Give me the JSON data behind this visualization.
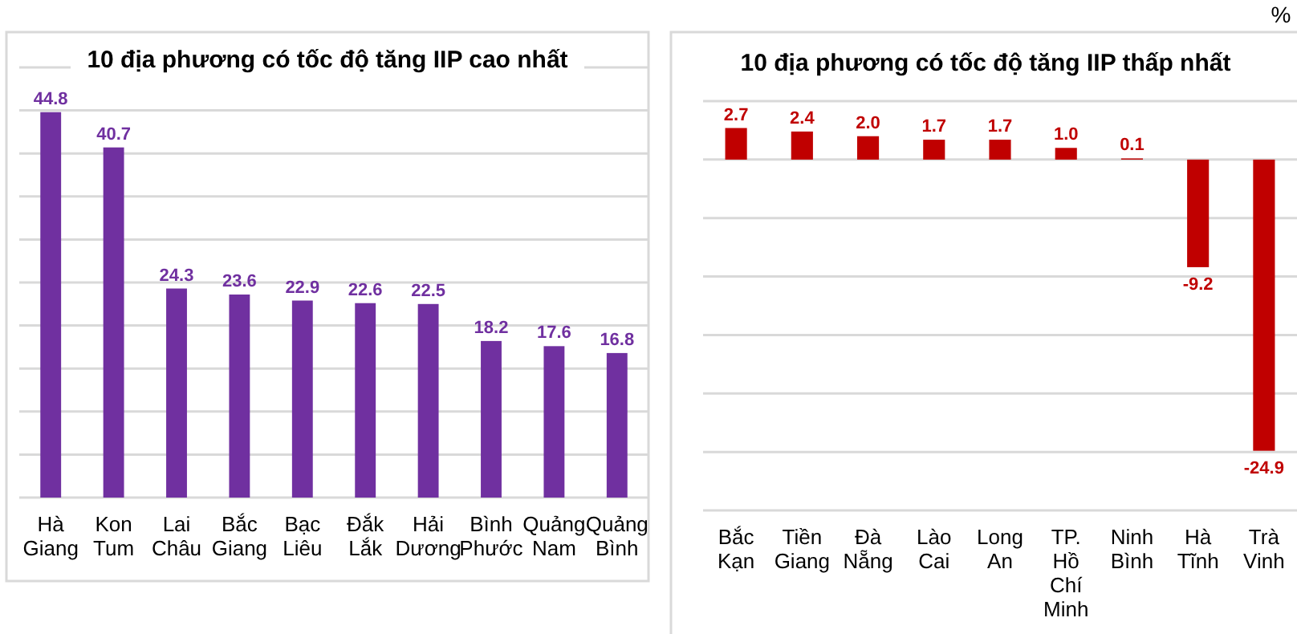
{
  "chart_data": [
    {
      "type": "bar",
      "title": "10 địa phương có tốc độ tăng IIP cao nhất",
      "categories": [
        "Hà Giang",
        "Kon Tum",
        "Lai Châu",
        "Bắc Giang",
        "Bạc Liêu",
        "Đắk Lắk",
        "Hải Dương",
        "Bình Phước",
        "Quảng Nam",
        "Quảng Bình"
      ],
      "values": [
        44.8,
        40.7,
        24.3,
        23.6,
        22.9,
        22.6,
        22.5,
        18.2,
        17.6,
        16.8
      ],
      "color": "#7030a0",
      "ylim": [
        0,
        50
      ],
      "yticks": [
        {
          "value": 0,
          "label": null
        },
        {
          "value": 5,
          "label": null
        },
        {
          "value": 10,
          "label": null
        },
        {
          "value": 15,
          "label": null
        },
        {
          "value": 20,
          "label": null
        },
        {
          "value": 25,
          "label": null
        },
        {
          "value": 30,
          "label": null
        },
        {
          "value": 35,
          "label": null
        },
        {
          "value": 40,
          "label": null
        },
        {
          "value": 45,
          "label": null
        },
        {
          "value": 50,
          "label": null
        }
      ],
      "grid": "y",
      "tick_labels": "x",
      "data_labels": true
    },
    {
      "type": "bar",
      "title": "10 địa phương có tốc độ tăng IIP thấp nhất",
      "ylabel": "%",
      "categories": [
        "Bắc Kạn",
        "Tiền Giang",
        "Đà Nẵng",
        "Lào Cai",
        "Long An",
        "TP. Hồ Chí Minh",
        "Ninh Bình",
        "Hà Tĩnh",
        "Trà Vinh"
      ],
      "values": [
        2.7,
        2.4,
        2.0,
        1.7,
        1.7,
        1.0,
        0.1,
        -9.2,
        -24.9
      ],
      "value_labels": [
        "2.7",
        "2.4",
        "2.0",
        "1.7",
        "1.7",
        "1.0",
        "0.1",
        "-9.2",
        "-24.9"
      ],
      "color": "#c00000",
      "ylim": [
        -30,
        5
      ],
      "yticks": [
        {
          "value": -30,
          "label": null
        },
        {
          "value": -25,
          "label": null
        },
        {
          "value": -20,
          "label": null
        },
        {
          "value": -15,
          "label": null
        },
        {
          "value": -10,
          "label": null
        },
        {
          "value": -5,
          "label": null
        },
        {
          "value": 0,
          "label": null
        },
        {
          "value": 5,
          "label": null
        }
      ],
      "grid": "y",
      "tick_labels": "x"
    }
  ]
}
